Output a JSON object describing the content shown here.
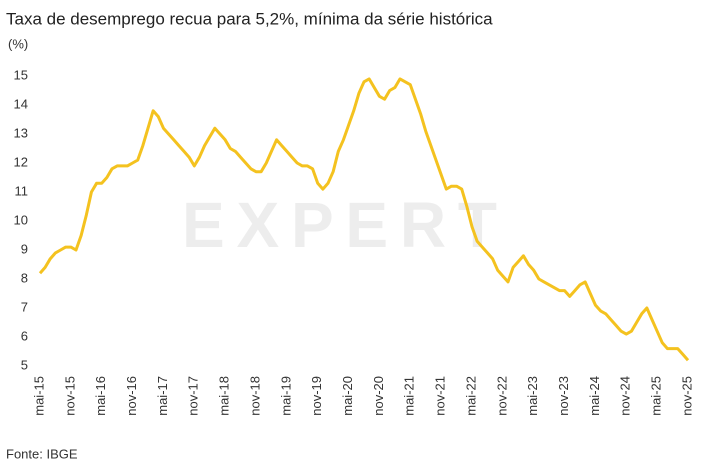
{
  "chart_data": {
    "type": "line",
    "title": "Taxa de desemprego recua para 5,2%, mínima da série histórica",
    "y_label": "(%)",
    "source": "Fonte: IBGE",
    "watermark": "EXPERT",
    "color": "#f4c21f",
    "ylim": [
      5,
      15
    ],
    "yticks": [
      5,
      6,
      7,
      8,
      9,
      10,
      11,
      12,
      13,
      14,
      15
    ],
    "grid": false,
    "categories": [
      "mai-15",
      null,
      null,
      null,
      null,
      null,
      "nov-15",
      null,
      null,
      null,
      null,
      null,
      "mai-16",
      null,
      null,
      null,
      null,
      null,
      "nov-16",
      null,
      null,
      null,
      null,
      null,
      "mai-17",
      null,
      null,
      null,
      null,
      null,
      "nov-17",
      null,
      null,
      null,
      null,
      null,
      "mai-18",
      null,
      null,
      null,
      null,
      null,
      "nov-18",
      null,
      null,
      null,
      null,
      null,
      "mai-19",
      null,
      null,
      null,
      null,
      null,
      "nov-19",
      null,
      null,
      null,
      null,
      null,
      "mai-20",
      null,
      null,
      null,
      null,
      null,
      "nov-20",
      null,
      null,
      null,
      null,
      null,
      "mai-21",
      null,
      null,
      null,
      null,
      null,
      "nov-21",
      null,
      null,
      null,
      null,
      null,
      "mai-22",
      null,
      null,
      null,
      null,
      null,
      "nov-22",
      null,
      null,
      null,
      null,
      null,
      "mai-23",
      null,
      null,
      null,
      null,
      null,
      "nov-23",
      null,
      null,
      null,
      null,
      null,
      "mai-24",
      null,
      null,
      null,
      null,
      null,
      "nov-24",
      null,
      null,
      null,
      null,
      null,
      "mai-25",
      null,
      null,
      null,
      null,
      null,
      "nov-25"
    ],
    "values": [
      8.2,
      8.4,
      8.7,
      8.9,
      9.0,
      9.1,
      9.1,
      9.0,
      9.5,
      10.2,
      11.0,
      11.3,
      11.3,
      11.5,
      11.8,
      11.9,
      11.9,
      11.9,
      12.0,
      12.1,
      12.6,
      13.2,
      13.8,
      13.6,
      13.2,
      13.0,
      12.8,
      12.6,
      12.4,
      12.2,
      11.9,
      12.2,
      12.6,
      12.9,
      13.2,
      13.0,
      12.8,
      12.5,
      12.4,
      12.2,
      12.0,
      11.8,
      11.7,
      11.7,
      12.0,
      12.4,
      12.8,
      12.6,
      12.4,
      12.2,
      12.0,
      11.9,
      11.9,
      11.8,
      11.3,
      11.1,
      11.3,
      11.7,
      12.4,
      12.8,
      13.3,
      13.8,
      14.4,
      14.8,
      14.9,
      14.6,
      14.3,
      14.2,
      14.5,
      14.6,
      14.9,
      14.8,
      14.7,
      14.2,
      13.7,
      13.1,
      12.6,
      12.1,
      11.6,
      11.1,
      11.2,
      11.2,
      11.1,
      10.5,
      9.8,
      9.3,
      9.1,
      8.9,
      8.7,
      8.3,
      8.1,
      7.9,
      8.4,
      8.6,
      8.8,
      8.5,
      8.3,
      8.0,
      7.9,
      7.8,
      7.7,
      7.6,
      7.6,
      7.4,
      7.6,
      7.8,
      7.9,
      7.5,
      7.1,
      6.9,
      6.8,
      6.6,
      6.4,
      6.2,
      6.1,
      6.2,
      6.5,
      6.8,
      7.0,
      6.6,
      6.2,
      5.8,
      5.6,
      5.6,
      5.6,
      5.4,
      5.2
    ]
  }
}
